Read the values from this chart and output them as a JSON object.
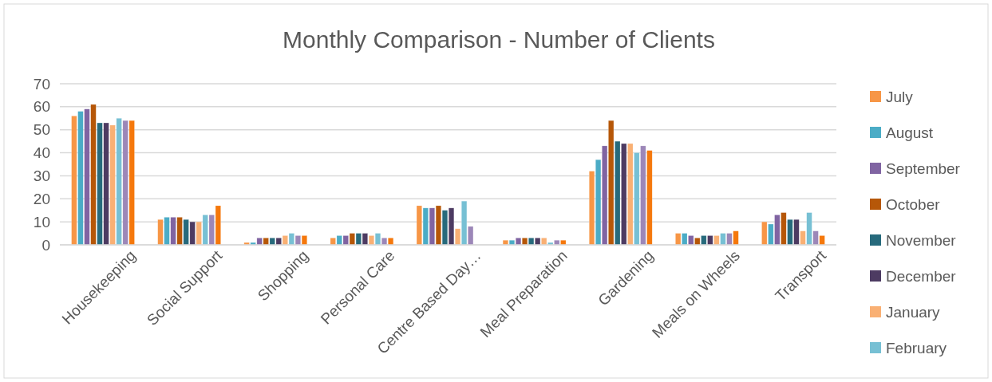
{
  "chart_data": {
    "type": "bar",
    "title": "Monthly Comparison - Number of Clients",
    "categories": [
      "Housekeeping",
      "Social Support",
      "Shopping",
      "Personal Care",
      "Centre Based Day…",
      "Meal Preparation",
      "Gardening",
      "Meals on Wheels",
      "Transport"
    ],
    "series": [
      {
        "name": "July",
        "color": "#f79646",
        "values": [
          56,
          11,
          1,
          3,
          17,
          2,
          32,
          5,
          10
        ]
      },
      {
        "name": "August",
        "color": "#4bacc6",
        "values": [
          58,
          12,
          1,
          4,
          16,
          2,
          37,
          5,
          9
        ]
      },
      {
        "name": "September",
        "color": "#8064a2",
        "values": [
          59,
          12,
          3,
          4,
          16,
          3,
          43,
          4,
          13
        ]
      },
      {
        "name": "October",
        "color": "#b65708",
        "values": [
          61,
          12,
          3,
          5,
          17,
          3,
          54,
          3,
          14
        ]
      },
      {
        "name": "November",
        "color": "#276a7c",
        "values": [
          53,
          11,
          3,
          5,
          15,
          3,
          45,
          4,
          11
        ]
      },
      {
        "name": "December",
        "color": "#4d3b62",
        "values": [
          53,
          10,
          3,
          5,
          16,
          3,
          44,
          4,
          11
        ]
      },
      {
        "name": "January",
        "color": "#f9b074",
        "values": [
          52,
          10,
          4,
          4,
          7,
          3,
          44,
          4,
          6
        ]
      },
      {
        "name": "February",
        "color": "#77c0d4",
        "values": [
          55,
          13,
          5,
          5,
          19,
          1,
          40,
          5,
          14
        ]
      },
      {
        "color": "#9c87b8",
        "values": [
          54,
          13,
          4,
          3,
          8,
          2,
          43,
          5,
          6
        ]
      },
      {
        "color": "#f5780c",
        "values": [
          54,
          17,
          4,
          3,
          null,
          2,
          41,
          6,
          4
        ]
      }
    ],
    "ylim": [
      0,
      70
    ],
    "yticks": [
      0,
      10,
      20,
      30,
      40,
      50,
      60,
      70
    ],
    "grid": "y",
    "legend": "right"
  }
}
